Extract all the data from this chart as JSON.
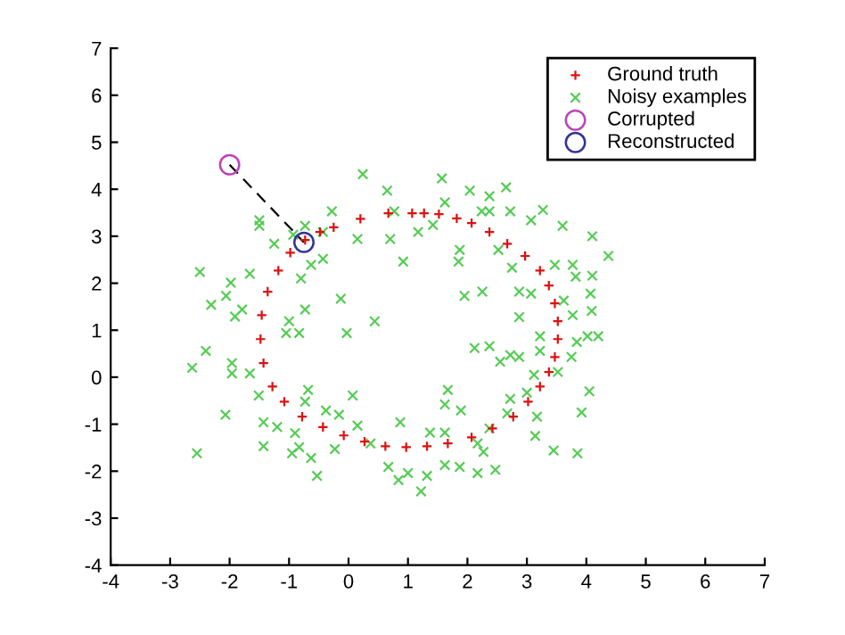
{
  "chart_data": {
    "type": "scatter",
    "xlim": [
      -4,
      7
    ],
    "ylim": [
      -4,
      7
    ],
    "xticks": [
      -4,
      -3,
      -2,
      -1,
      0,
      1,
      2,
      3,
      4,
      5,
      6,
      7
    ],
    "yticks": [
      -4,
      -3,
      -2,
      -1,
      0,
      1,
      2,
      3,
      4,
      5,
      6,
      7
    ],
    "grid": false,
    "legend": "top right",
    "series": [
      {
        "name": "Ground truth",
        "color": "#dd1111",
        "marker": "plus",
        "x": [
          0.2,
          0.67,
          1.07,
          1.27,
          1.52,
          1.82,
          2.07,
          2.37,
          2.67,
          2.97,
          3.22,
          3.37,
          3.47,
          3.52,
          3.52,
          3.47,
          3.37,
          3.22,
          3.02,
          2.77,
          2.42,
          2.07,
          1.67,
          1.32,
          0.97,
          0.62,
          0.27,
          -0.08,
          -0.43,
          -0.78,
          -1.08,
          -1.28,
          -1.43,
          -1.48,
          -1.46,
          -1.36,
          -1.18,
          -0.98,
          -0.73,
          -0.48,
          -0.25
        ],
        "values": [
          3.37,
          3.49,
          3.49,
          3.49,
          3.47,
          3.38,
          3.28,
          3.09,
          2.84,
          2.58,
          2.27,
          1.95,
          1.57,
          1.19,
          0.81,
          0.43,
          0.11,
          -0.2,
          -0.52,
          -0.84,
          -1.09,
          -1.28,
          -1.41,
          -1.47,
          -1.49,
          -1.47,
          -1.37,
          -1.24,
          -1.06,
          -0.84,
          -0.52,
          -0.2,
          0.3,
          0.81,
          1.32,
          1.82,
          2.27,
          2.65,
          2.92,
          3.09,
          3.19
        ]
      },
      {
        "name": "Noisy examples",
        "color": "#55cc55",
        "marker": "cross",
        "x": [
          0.24,
          0.65,
          1.57,
          2.04,
          2.65,
          3.27,
          3.6,
          4.1,
          4.37,
          4.1,
          4.07,
          4.09,
          4.02,
          4.2,
          4.05,
          3.92,
          3.85,
          3.45,
          3.14,
          3.17,
          3.0,
          2.87,
          2.72,
          2.55,
          2.37,
          2.12,
          2.47,
          2.17,
          1.87,
          1.62,
          1.32,
          1.22,
          1.0,
          0.84,
          0.67,
          0.87,
          1.37,
          1.62,
          1.89,
          1.67,
          1.62,
          0.07,
          0.15,
          0.37,
          -0.23,
          -0.53,
          -0.63,
          -0.83,
          -0.95,
          -0.9,
          -1.2,
          -1.43,
          -1.43,
          -1.51,
          -0.73,
          -0.68,
          -0.38,
          -0.16,
          -2.07,
          -2.55,
          -2.63,
          -2.4,
          -2.31,
          -2.06,
          -1.98,
          -2.5,
          -1.91,
          -1.79,
          -1.66,
          -1.96,
          -1.96,
          -1.66,
          -1.5,
          -1.5,
          -1.25,
          -0.93,
          -0.73,
          -0.28,
          -0.43,
          -0.63,
          -0.43,
          -0.8,
          -0.73,
          -1.0,
          -0.83,
          -1.05,
          -0.13,
          -0.03,
          0.44,
          0.15,
          0.7,
          0.92,
          1.17,
          1.42,
          1.87,
          1.85,
          1.95,
          2.25,
          2.52,
          2.75,
          2.87,
          2.87,
          3.07,
          3.22,
          3.22,
          3.12,
          3.47,
          3.77,
          3.82,
          3.62,
          3.77,
          3.84,
          3.75,
          3.52,
          2.37,
          2.24,
          2.37,
          1.62,
          0.77,
          2.72,
          2.67,
          2.37,
          2.27,
          2.17,
          2.72,
          3.07
        ],
        "values": [
          4.32,
          3.97,
          4.23,
          3.97,
          4.04,
          3.56,
          3.22,
          3.0,
          2.58,
          2.16,
          1.78,
          1.41,
          0.87,
          0.87,
          -0.3,
          -0.75,
          -1.62,
          -1.56,
          -1.25,
          -0.84,
          -0.33,
          0.43,
          0.47,
          0.33,
          0.66,
          0.62,
          -1.97,
          -2.04,
          -1.91,
          -1.87,
          -2.1,
          -2.43,
          -2.04,
          -2.19,
          -1.91,
          -0.96,
          -1.18,
          -1.18,
          -0.71,
          -0.27,
          -0.58,
          -0.39,
          -1.03,
          -1.41,
          -1.53,
          -2.1,
          -1.72,
          -1.49,
          -1.62,
          -1.19,
          -1.06,
          -1.47,
          -0.96,
          -0.39,
          -0.52,
          -0.27,
          -0.71,
          -0.8,
          -0.8,
          -1.62,
          0.2,
          0.56,
          1.54,
          1.73,
          2.01,
          2.24,
          1.29,
          1.44,
          2.2,
          0.3,
          0.08,
          0.08,
          3.34,
          3.22,
          2.84,
          3.03,
          3.22,
          3.53,
          3.09,
          2.39,
          2.52,
          2.1,
          1.44,
          1.19,
          0.94,
          0.94,
          1.67,
          0.94,
          1.19,
          2.94,
          2.94,
          2.46,
          3.09,
          3.24,
          2.71,
          2.46,
          1.73,
          1.82,
          2.71,
          2.33,
          1.82,
          1.28,
          1.78,
          0.87,
          0.56,
          0.05,
          2.39,
          2.39,
          2.14,
          1.63,
          1.32,
          0.75,
          0.43,
          0.11,
          3.85,
          3.53,
          3.53,
          3.72,
          3.53,
          -0.46,
          -0.77,
          -1.09,
          -1.59,
          -1.41,
          3.53,
          3.34
        ]
      },
      {
        "type": "line",
        "color": "#000000",
        "marker": "none",
        "line_style": "dashed",
        "x": [
          -2,
          -0.75
        ],
        "values": [
          4.52,
          2.87
        ]
      },
      {
        "name": "Corrupted",
        "color": "#bb44bb",
        "marker": "circle",
        "x": [
          -2
        ],
        "values": [
          4.52
        ]
      },
      {
        "name": "Reconstructed",
        "color": "#333399",
        "marker": "circle",
        "x": [
          -0.75
        ],
        "values": [
          2.87
        ]
      }
    ]
  }
}
